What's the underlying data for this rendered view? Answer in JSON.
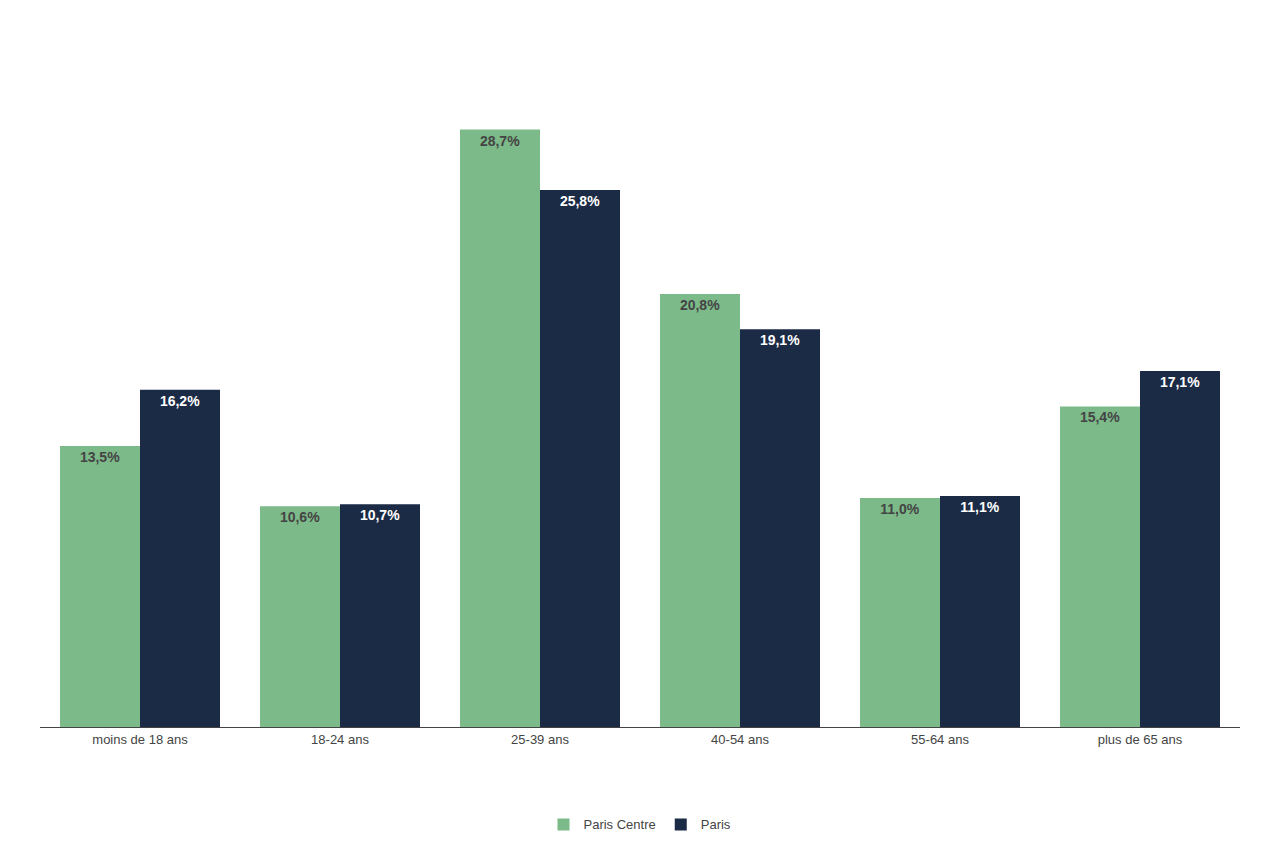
{
  "chart_data": {
    "type": "bar",
    "categories": [
      "moins de 18 ans",
      "18-24 ans",
      "25-39 ans",
      "40-54 ans",
      "55-64 ans",
      "plus de 65 ans"
    ],
    "series": [
      {
        "name": "Paris Centre",
        "color": "#7dba8a",
        "values": [
          13.5,
          10.6,
          28.7,
          20.8,
          11.0,
          15.4
        ],
        "value_labels": [
          "13,5%",
          "10,6%",
          "28,7%",
          "20,8%",
          "11,0%",
          "15,4%"
        ]
      },
      {
        "name": "Paris",
        "color": "#1b2a45",
        "values": [
          16.2,
          10.7,
          25.8,
          19.1,
          11.1,
          17.1
        ],
        "value_labels": [
          "16,2%",
          "10,7%",
          "25,8%",
          "19,1%",
          "11,1%",
          "17,1%"
        ]
      }
    ],
    "ylim": [
      0,
      33
    ],
    "grid": false,
    "legend": "bottom",
    "data_labels": true,
    "tick_labels": "x"
  }
}
